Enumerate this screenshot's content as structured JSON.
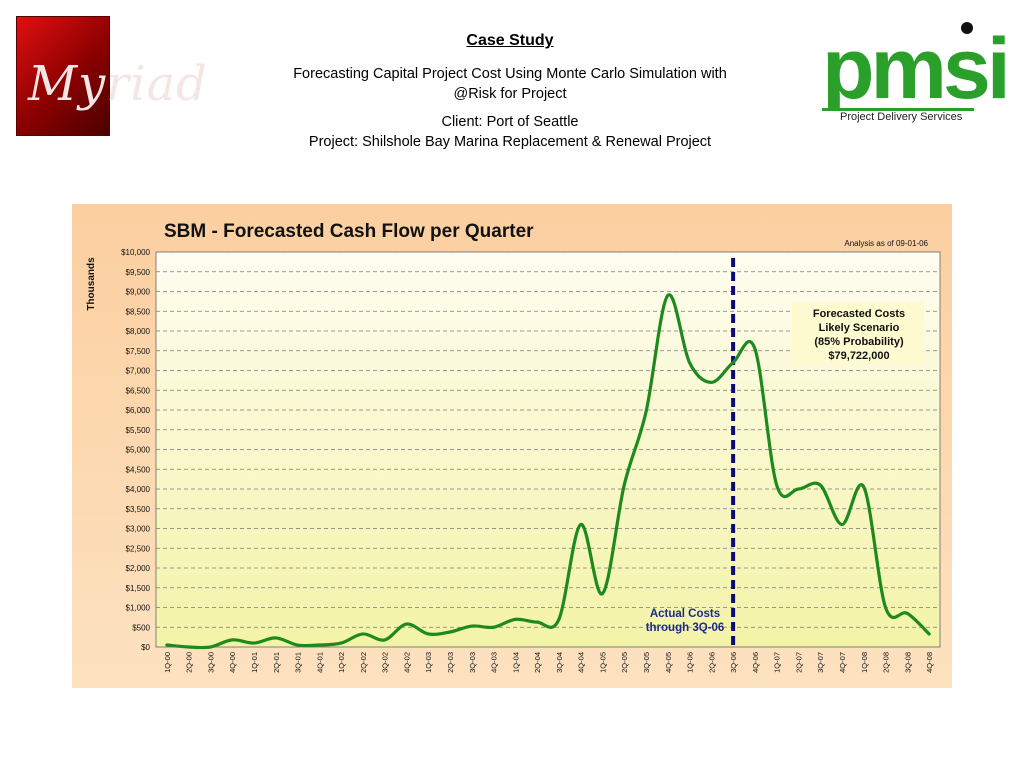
{
  "header": {
    "title": "Case Study",
    "subtitle_line1": "Forecasting Capital Project Cost Using Monte Carlo Simulation with",
    "subtitle_line2": "@Risk for Project",
    "client": "Client: Port of Seattle",
    "project": "Project: Shilshole Bay Marina Replacement & Renewal Project"
  },
  "logos": {
    "left": {
      "text": "Myriad"
    },
    "right": {
      "text": "pmsi",
      "subtext": "Project Delivery Services"
    }
  },
  "colors": {
    "line": "#1e8a1e",
    "divider": "#0a0a7a",
    "annotation_text": "#1c2a8a",
    "plot_bg_top": "#fffdf0",
    "plot_bg_bottom": "#f3f3a8"
  },
  "chart_data": {
    "type": "line",
    "title": "SBM - Forecasted Cash Flow per Quarter",
    "note": "Analysis as of 09-01-06",
    "ylabel": "Thousands",
    "xlabel": "",
    "ylim": [
      0,
      10000
    ],
    "ytick_step": 500,
    "ytick_labels": [
      "$0",
      "$500",
      "$1,000",
      "$1,500",
      "$2,000",
      "$2,500",
      "$3,000",
      "$3,500",
      "$4,000",
      "$4,500",
      "$5,000",
      "$5,500",
      "$6,000",
      "$6,500",
      "$7,000",
      "$7,500",
      "$8,000",
      "$8,500",
      "$9,000",
      "$9,500",
      "$10,000"
    ],
    "grid": true,
    "categories": [
      "1Q-00",
      "2Q-00",
      "3Q-00",
      "4Q-00",
      "1Q-01",
      "2Q-01",
      "3Q-01",
      "4Q-01",
      "1Q-02",
      "2Q-02",
      "3Q-02",
      "4Q-02",
      "1Q-03",
      "2Q-03",
      "3Q-03",
      "4Q-03",
      "1Q-04",
      "2Q-04",
      "3Q-04",
      "4Q-04",
      "1Q-05",
      "2Q-05",
      "3Q-05",
      "4Q-05",
      "1Q-06",
      "2Q-06",
      "3Q-06",
      "4Q-06",
      "1Q-07",
      "2Q-07",
      "3Q-07",
      "4Q-07",
      "1Q-08",
      "2Q-08",
      "3Q-08",
      "4Q-08"
    ],
    "series": [
      {
        "values": [
          50,
          0,
          0,
          180,
          100,
          230,
          50,
          50,
          100,
          330,
          180,
          580,
          330,
          380,
          530,
          500,
          700,
          630,
          700,
          3100,
          1350,
          4100,
          5950,
          8900,
          7200,
          6700,
          7200,
          7550,
          4100,
          4000,
          4100,
          3100,
          4050,
          1000,
          850,
          330
        ]
      }
    ],
    "divider_after_category": "3Q-06",
    "annotations": {
      "actual": [
        "Actual Costs",
        "through 3Q-06"
      ],
      "forecast": [
        "Forecasted Costs",
        "Likely Scenario",
        "(85% Probability)",
        "$79,722,000"
      ]
    }
  }
}
